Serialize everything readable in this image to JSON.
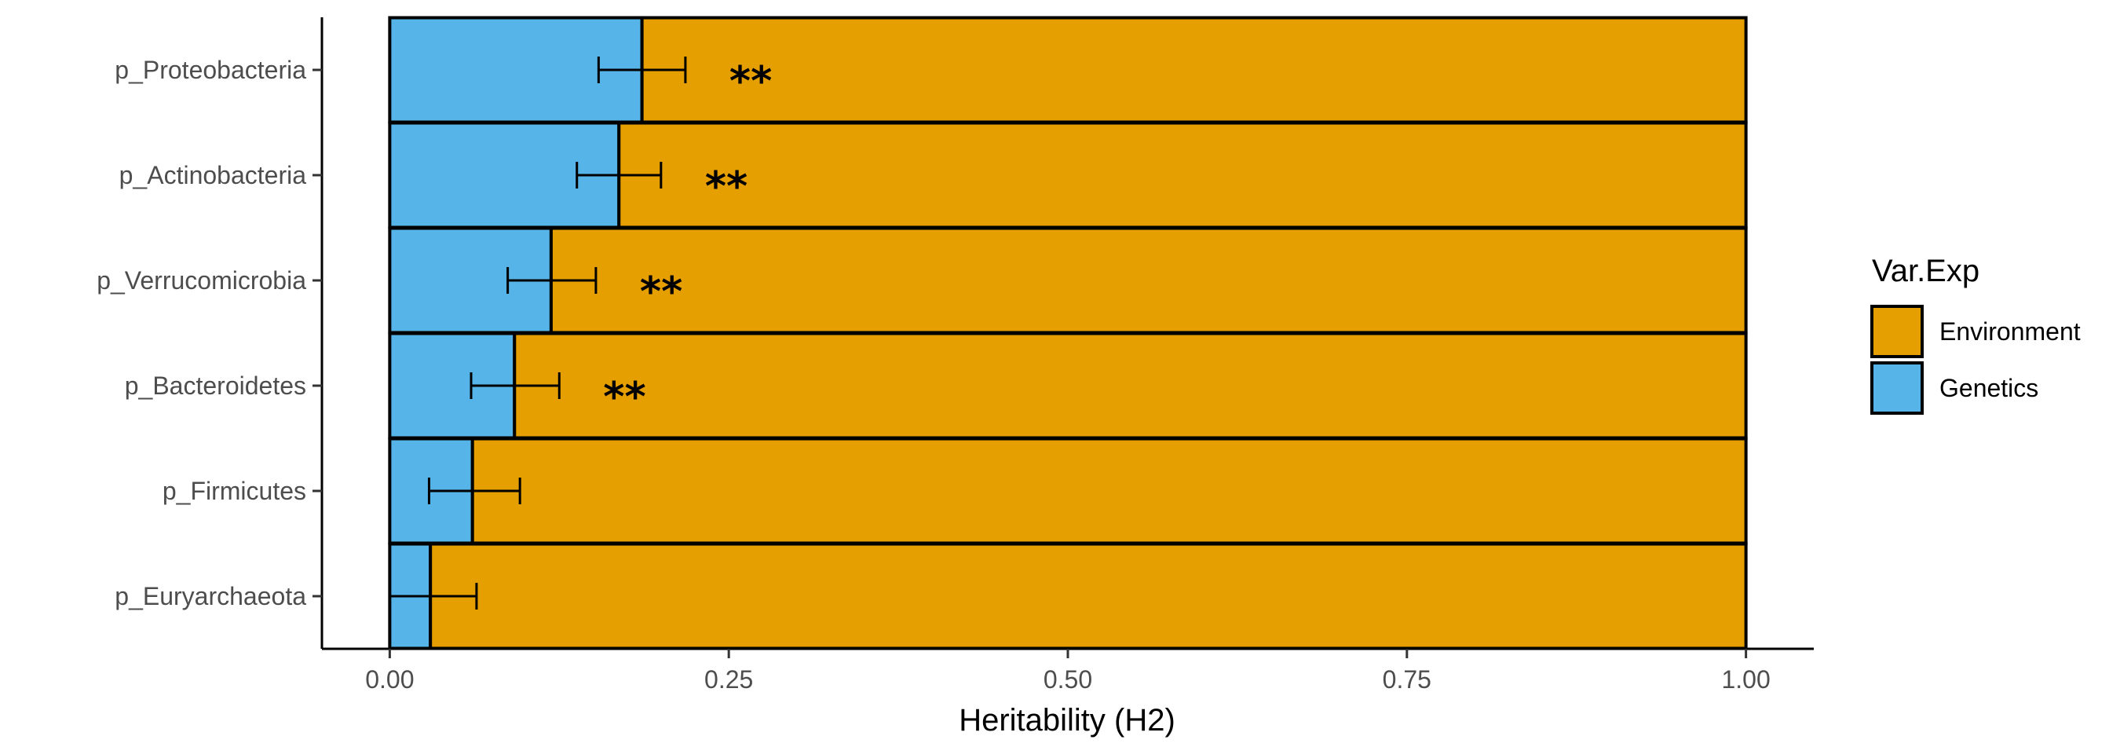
{
  "chart_data": {
    "type": "bar",
    "orientation": "horizontal",
    "stacked": true,
    "categories": [
      "p_Proteobacteria",
      "p_Actinobacteria",
      "p_Verrucomicrobia",
      "p_Bacteroidetes",
      "p_Firmicutes",
      "p_Euryarchaeota"
    ],
    "series": [
      {
        "name": "Genetics",
        "color": "#56B4E9",
        "values": [
          0.186,
          0.169,
          0.119,
          0.092,
          0.061,
          0.03
        ]
      },
      {
        "name": "Environment",
        "color": "#E69F00",
        "values": [
          0.814,
          0.831,
          0.881,
          0.908,
          0.939,
          0.97
        ]
      }
    ],
    "error_bars": {
      "series": "Genetics",
      "lower": [
        0.154,
        0.138,
        0.087,
        0.06,
        0.029,
        0.0
      ],
      "upper": [
        0.218,
        0.2,
        0.152,
        0.125,
        0.096,
        0.064
      ]
    },
    "annotations": [
      "**",
      "**",
      "**",
      "**",
      "",
      ""
    ],
    "xlabel": "Heritability (H2)",
    "ylabel": "",
    "xlim": [
      -0.05,
      1.05
    ],
    "xticks": [
      0.0,
      0.25,
      0.5,
      0.75,
      1.0
    ],
    "xtick_labels": [
      "0.00",
      "0.25",
      "0.50",
      "0.75",
      "1.00"
    ],
    "grid": false,
    "legend": {
      "title": "Var.Exp",
      "position": "right",
      "entries": [
        {
          "label": "Environment",
          "color": "#E69F00"
        },
        {
          "label": "Genetics",
          "color": "#56B4E9"
        }
      ]
    }
  }
}
